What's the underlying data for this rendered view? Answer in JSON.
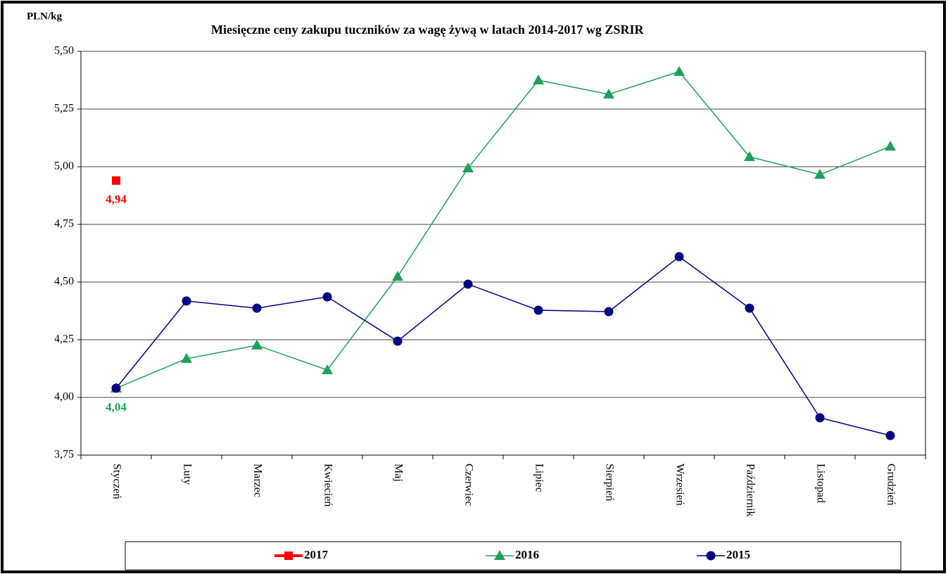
{
  "chart_data": {
    "type": "line",
    "title": "Miesięczne ceny zakupu tuczników za wagę żywą w latach 2014-2017  wg ZSRIR",
    "y_label": "PLN/kg",
    "categories": [
      "Styczeń",
      "Luty",
      "Marzec",
      "Kwiecień",
      "Maj",
      "Czerwiec",
      "Lipiec",
      "Sierpień",
      "Wrzesień",
      "Październik",
      "Listopad",
      "Grudzień"
    ],
    "ylim": [
      3.75,
      5.5
    ],
    "yticks": [
      {
        "value": 3.75,
        "label": "3,75"
      },
      {
        "value": 4.0,
        "label": "4,00"
      },
      {
        "value": 4.25,
        "label": "4,25"
      },
      {
        "value": 4.5,
        "label": "4,50"
      },
      {
        "value": 4.75,
        "label": "4,75"
      },
      {
        "value": 5.0,
        "label": "5,00"
      },
      {
        "value": 5.25,
        "label": "5,25"
      },
      {
        "value": 5.5,
        "label": "5,50"
      }
    ],
    "grid": true,
    "legend": "bottom",
    "series": [
      {
        "name": "2017",
        "color": "#ff0000",
        "marker": "square",
        "values": [
          4.94,
          null,
          null,
          null,
          null,
          null,
          null,
          null,
          null,
          null,
          null,
          null
        ],
        "value_labels": [
          "4,94",
          null,
          null,
          null,
          null,
          null,
          null,
          null,
          null,
          null,
          null,
          null
        ]
      },
      {
        "name": "2016",
        "color": "#1fa05a",
        "marker": "triangle",
        "values": [
          4.04,
          4.168,
          4.226,
          4.119,
          4.524,
          4.994,
          5.375,
          5.314,
          5.412,
          5.043,
          4.966,
          5.088
        ],
        "value_labels": [
          "4,04",
          null,
          null,
          null,
          null,
          null,
          null,
          null,
          null,
          null,
          null,
          null
        ]
      },
      {
        "name": "2015",
        "color": "#000080",
        "marker": "circle",
        "values": [
          4.04,
          4.418,
          4.387,
          4.436,
          4.244,
          4.491,
          4.378,
          4.372,
          4.61,
          4.387,
          3.912,
          3.835
        ]
      }
    ]
  }
}
